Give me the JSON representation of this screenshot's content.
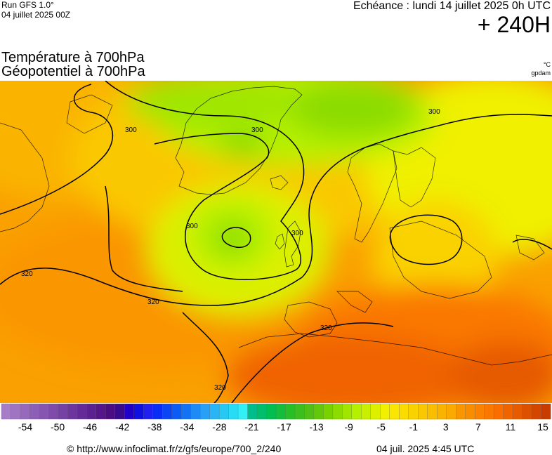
{
  "header": {
    "run": "Run GFS 1.0°",
    "run_date": "04 juillet 2025 00Z",
    "valid": "Echéance : lundi 14 juillet 2025 0h UTC",
    "lead": "+ 240H"
  },
  "titles": {
    "line1": "Température à 700hPa",
    "line2": "Géopotentiel à 700hPa"
  },
  "units": {
    "temp": "°C",
    "geo": "gpdam"
  },
  "contours": [
    "300",
    "300",
    "300",
    "300",
    "300",
    "320",
    "320",
    "320",
    "320"
  ],
  "legend": {
    "colors": [
      "#a77dc8",
      "#9f74c3",
      "#9769bd",
      "#8e5fb7",
      "#8655b1",
      "#7e4baa",
      "#7541a4",
      "#6c369e",
      "#632b97",
      "#5b2191",
      "#55168a",
      "#4c0c82",
      "#3a0a8c",
      "#2000c8",
      "#1010e0",
      "#2020f0",
      "#0a2df5",
      "#0a45f5",
      "#0a5cf5",
      "#1473f5",
      "#1e8af5",
      "#28a0f5",
      "#28b4f5",
      "#28c8f5",
      "#28dcf5",
      "#32f0f5",
      "#00be8c",
      "#00be6e",
      "#00be50",
      "#14be3c",
      "#28be28",
      "#3cbe1e",
      "#50c014",
      "#64c80a",
      "#78d200",
      "#8cdc00",
      "#a0e600",
      "#b4f000",
      "#c8f000",
      "#dcf000",
      "#f0f000",
      "#fae600",
      "#fadc00",
      "#fad200",
      "#fac800",
      "#fabe00",
      "#fab400",
      "#faaa00",
      "#fa9600",
      "#fa8c00",
      "#fa8200",
      "#fa7800",
      "#fa6e00",
      "#f06400",
      "#e65a00",
      "#dc5000",
      "#d24600",
      "#c83c00"
    ],
    "labels": [
      "-54",
      "-50",
      "-46",
      "-42",
      "-38",
      "-34",
      "-28",
      "-21",
      "-17",
      "-13",
      "-9",
      "-5",
      "-1",
      "3",
      "7",
      "11",
      "15"
    ]
  },
  "footer": {
    "url": "© http://www.infoclimat.fr/z/gfs/europe/700_2/240",
    "timestamp": "04 juil. 2025  4:45 UTC"
  }
}
